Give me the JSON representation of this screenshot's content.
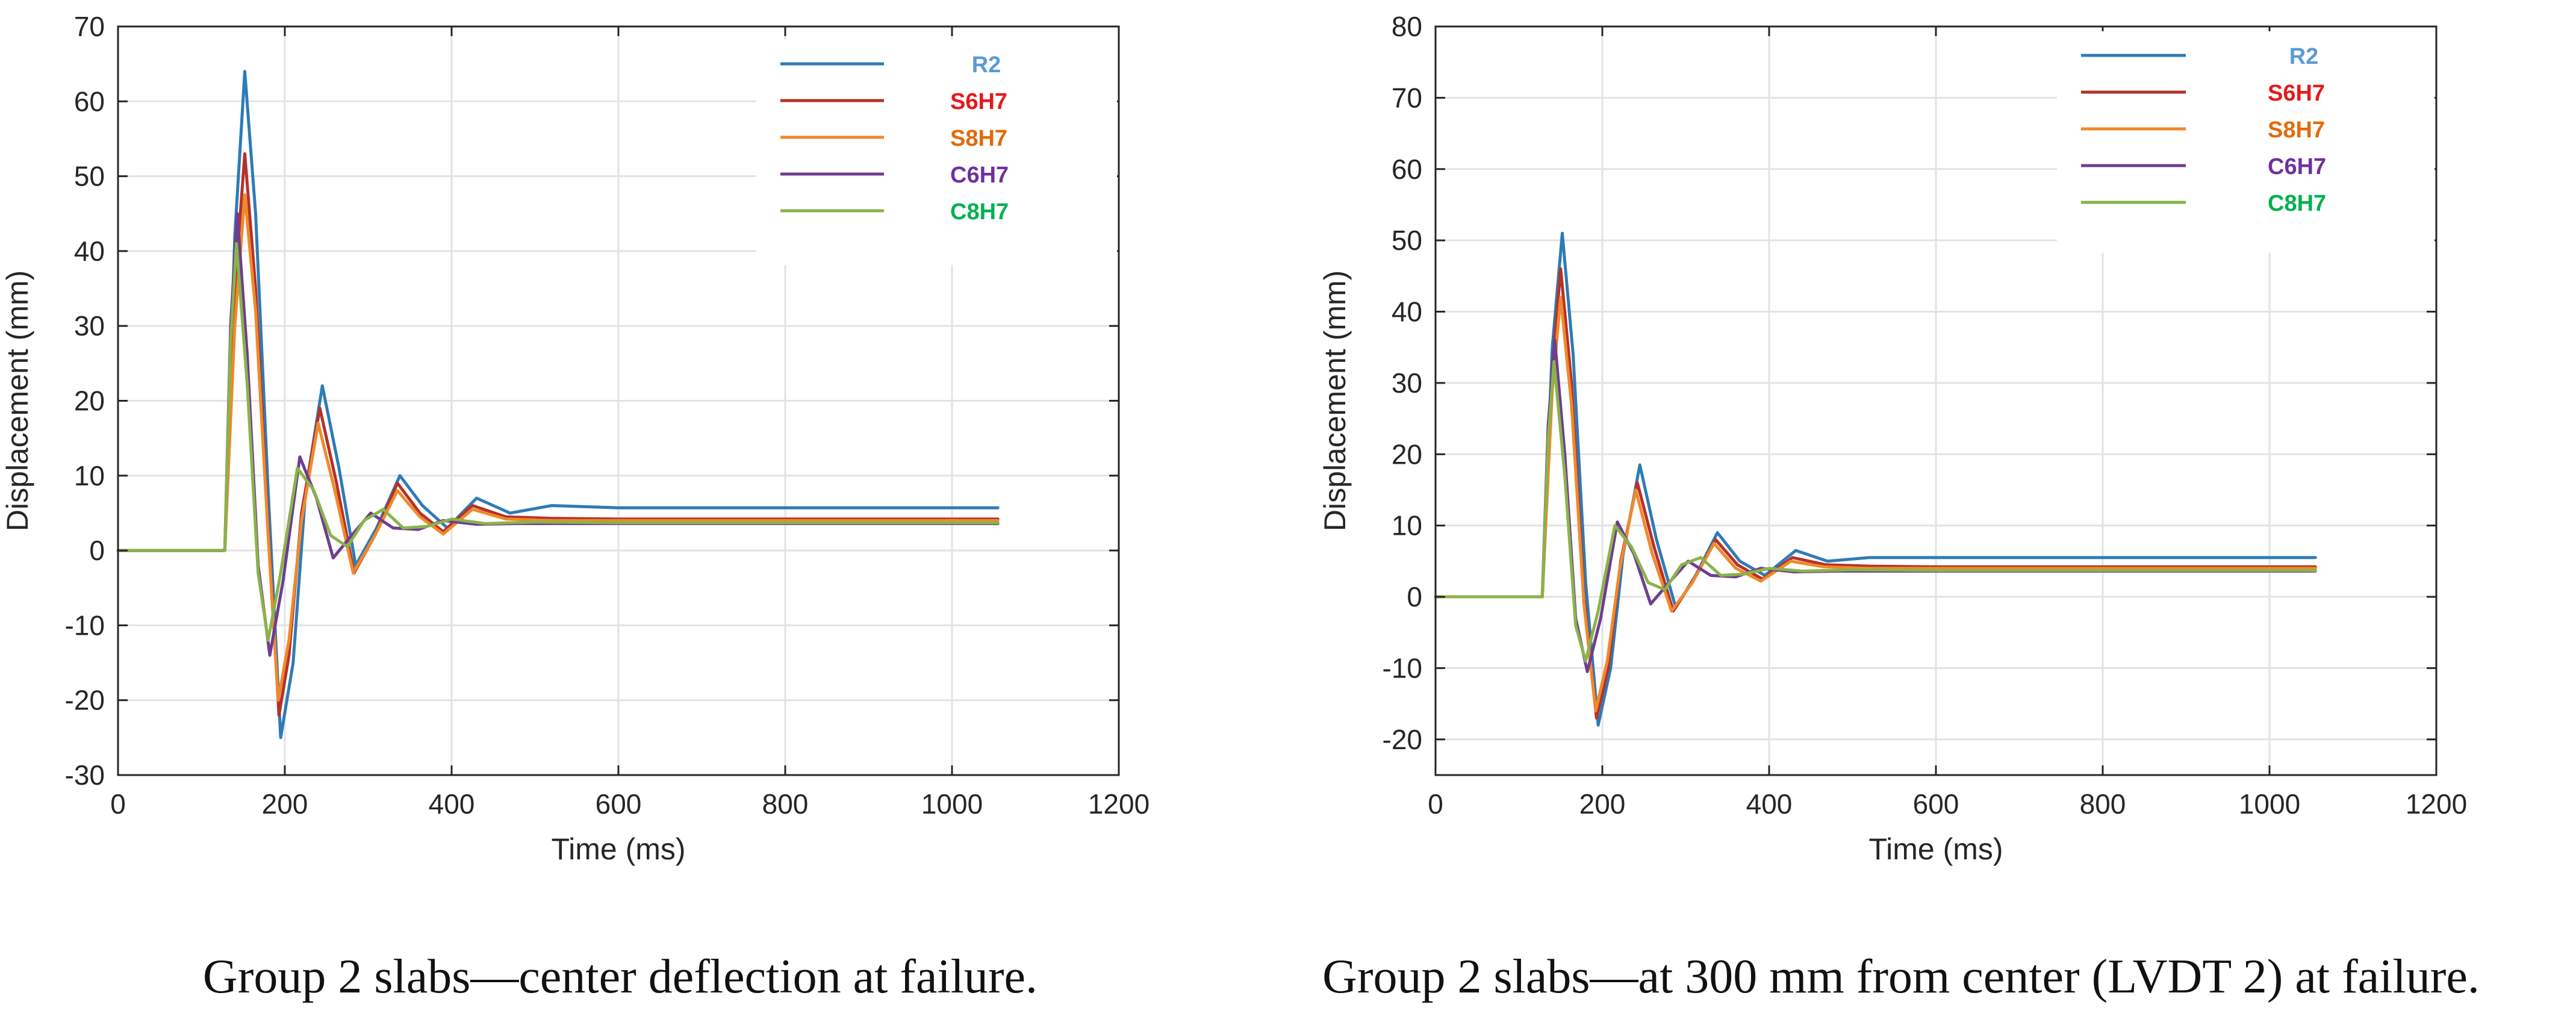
{
  "chart_data": [
    {
      "type": "line",
      "caption": "Group 2 slabs—center deflection at failure.",
      "xlabel": "Time (ms)",
      "ylabel": "Displacement (mm)",
      "xlim": [
        0,
        1200
      ],
      "ylim": [
        -30,
        70
      ],
      "xticks": [
        0,
        200,
        400,
        600,
        800,
        1000,
        1200
      ],
      "yticks": [
        -30,
        -20,
        -10,
        0,
        10,
        20,
        30,
        40,
        50,
        60,
        70
      ],
      "grid": true,
      "legend_position": "top-right",
      "series": [
        {
          "name": "R2",
          "color": "#2e7bb6",
          "text_color": "#5b9bd5",
          "x": [
            0,
            125,
            128,
            140,
            152,
            165,
            180,
            195,
            210,
            225,
            245,
            265,
            285,
            310,
            338,
            365,
            395,
            430,
            470,
            520,
            600,
            700,
            800,
            900,
            1055
          ],
          "y": [
            0,
            0,
            0,
            42,
            64,
            45,
            8,
            -25,
            -15,
            8,
            22,
            11,
            -2,
            3,
            10,
            6,
            3,
            7,
            5,
            6,
            5.7,
            5.7,
            5.7,
            5.7,
            5.7
          ]
        },
        {
          "name": "S6H7",
          "color": "#b5322a",
          "text_color": "#e31a1c",
          "x": [
            0,
            125,
            128,
            140,
            152,
            165,
            180,
            193,
            205,
            220,
            242,
            262,
            283,
            308,
            335,
            362,
            390,
            425,
            465,
            520,
            600,
            700,
            800,
            900,
            1055
          ],
          "y": [
            0,
            0,
            0,
            35,
            53,
            35,
            3,
            -22,
            -14,
            5,
            19,
            9,
            -3,
            2,
            9,
            5,
            2.5,
            6,
            4.5,
            4.3,
            4.2,
            4.2,
            4.2,
            4.2,
            4.2
          ]
        },
        {
          "name": "S8H7",
          "color": "#f0892a",
          "text_color": "#e26b0a",
          "x": [
            0,
            125,
            128,
            140,
            152,
            165,
            180,
            192,
            205,
            220,
            240,
            260,
            282,
            308,
            335,
            362,
            390,
            425,
            465,
            520,
            600,
            700,
            800,
            900,
            1055
          ],
          "y": [
            0,
            0,
            0,
            30,
            47.5,
            32,
            2,
            -20,
            -12,
            4,
            17,
            8,
            -3,
            2,
            8,
            4.5,
            2.2,
            5.5,
            4.2,
            4.0,
            4.0,
            4.0,
            4.0,
            4.0,
            4.0
          ]
        },
        {
          "name": "C6H7",
          "color": "#6f3d8f",
          "text_color": "#7030a0",
          "x": [
            0,
            125,
            128,
            135,
            143,
            155,
            168,
            182,
            198,
            218,
            238,
            258,
            280,
            303,
            330,
            360,
            390,
            430,
            480,
            600,
            700,
            800,
            900,
            1055
          ],
          "y": [
            0,
            0,
            0,
            30,
            45,
            26,
            -2,
            -14,
            -4,
            12.5,
            7,
            -1,
            2,
            5,
            3,
            2.8,
            4,
            3.5,
            3.6,
            3.6,
            3.6,
            3.6,
            3.6,
            3.6
          ]
        },
        {
          "name": "C8H7",
          "color": "#8ab34a",
          "text_color": "#00b050",
          "x": [
            0,
            125,
            128,
            135,
            142,
            155,
            168,
            180,
            195,
            215,
            235,
            255,
            275,
            295,
            318,
            342,
            370,
            400,
            440,
            500,
            600,
            700,
            800,
            900,
            1055
          ],
          "y": [
            0,
            0,
            0,
            28,
            41,
            22,
            -3,
            -12,
            -3,
            11,
            8,
            2,
            0.5,
            4,
            5.5,
            3,
            3.2,
            4.2,
            3.6,
            3.8,
            3.7,
            3.7,
            3.7,
            3.7,
            3.7
          ]
        }
      ]
    },
    {
      "type": "line",
      "caption": "Group 2 slabs—at 300 mm from center (LVDT 2) at failure.",
      "xlabel": "Time (ms)",
      "ylabel": "Displacement (mm)",
      "xlim": [
        0,
        1200
      ],
      "ylim": [
        -25,
        80
      ],
      "xticks": [
        0,
        200,
        400,
        600,
        800,
        1000,
        1200
      ],
      "yticks": [
        -20,
        -10,
        0,
        10,
        20,
        30,
        40,
        50,
        60,
        70,
        80
      ],
      "grid": true,
      "legend_position": "top-right",
      "series": [
        {
          "name": "R2",
          "color": "#2e7bb6",
          "text_color": "#5b9bd5",
          "x": [
            0,
            125,
            128,
            140,
            152,
            165,
            180,
            195,
            210,
            225,
            245,
            265,
            288,
            312,
            338,
            365,
            395,
            432,
            470,
            520,
            600,
            700,
            800,
            900,
            1055
          ],
          "y": [
            0,
            0,
            0,
            35,
            51,
            34,
            2,
            -18,
            -10,
            6,
            18.5,
            8,
            -1.5,
            3,
            9,
            5,
            3,
            6.5,
            5,
            5.5,
            5.5,
            5.5,
            5.5,
            5.5,
            5.5
          ]
        },
        {
          "name": "S6H7",
          "color": "#b5322a",
          "text_color": "#e31a1c",
          "x": [
            0,
            125,
            128,
            140,
            150,
            163,
            178,
            193,
            207,
            222,
            242,
            262,
            285,
            310,
            336,
            362,
            392,
            428,
            468,
            520,
            600,
            700,
            800,
            900,
            1055
          ],
          "y": [
            0,
            0,
            0,
            32,
            46,
            30,
            0,
            -17,
            -10,
            5,
            16,
            7,
            -2,
            2.5,
            8,
            4.5,
            2.5,
            5.5,
            4.5,
            4.3,
            4.2,
            4.2,
            4.2,
            4.2,
            4.2
          ]
        },
        {
          "name": "S8H7",
          "color": "#f0892a",
          "text_color": "#e26b0a",
          "x": [
            0,
            125,
            128,
            140,
            150,
            163,
            178,
            192,
            206,
            221,
            240,
            260,
            283,
            308,
            334,
            360,
            390,
            426,
            466,
            520,
            600,
            700,
            800,
            900,
            1055
          ],
          "y": [
            0,
            0,
            0,
            29,
            42,
            27,
            -1,
            -16,
            -9,
            4,
            15,
            6,
            -2,
            2,
            7.5,
            4,
            2.2,
            5,
            4.2,
            4.0,
            4.0,
            4.0,
            4.0,
            4.0,
            4.0
          ]
        },
        {
          "name": "C6H7",
          "color": "#6f3d8f",
          "text_color": "#7030a0",
          "x": [
            0,
            125,
            128,
            135,
            143,
            155,
            168,
            182,
            198,
            218,
            238,
            258,
            280,
            303,
            330,
            360,
            390,
            430,
            480,
            600,
            700,
            800,
            900,
            1055
          ],
          "y": [
            0,
            0,
            0,
            24,
            36,
            20,
            -3,
            -10.5,
            -3,
            10.5,
            6,
            -1,
            2,
            5,
            3,
            2.8,
            4,
            3.5,
            3.6,
            3.6,
            3.6,
            3.6,
            3.6,
            3.6
          ]
        },
        {
          "name": "C8H7",
          "color": "#8ab34a",
          "text_color": "#00b050",
          "x": [
            0,
            125,
            128,
            135,
            142,
            155,
            168,
            180,
            195,
            215,
            235,
            255,
            275,
            295,
            318,
            342,
            370,
            400,
            440,
            500,
            600,
            700,
            800,
            900,
            1055
          ],
          "y": [
            0,
            0,
            0,
            22,
            33,
            17,
            -4,
            -9,
            -2,
            10,
            7,
            2,
            1,
            4.5,
            5.5,
            3,
            3.2,
            4,
            3.6,
            3.8,
            3.7,
            3.7,
            3.7,
            3.7,
            3.7
          ]
        }
      ]
    }
  ]
}
